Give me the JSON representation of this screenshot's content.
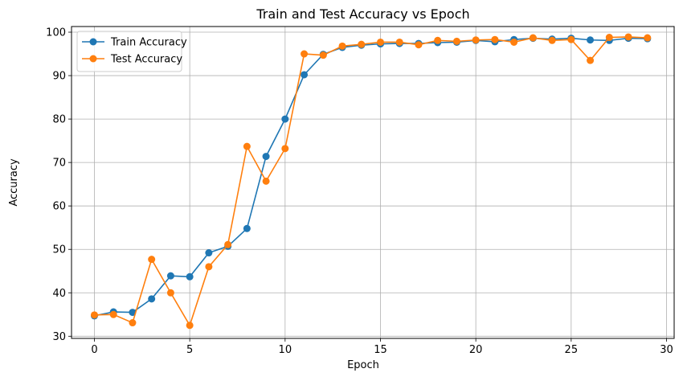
{
  "chart_data": {
    "type": "line",
    "title": "Train and Test Accuracy vs Epoch",
    "xlabel": "Epoch",
    "ylabel": "Accuracy",
    "xlim": [
      -1.2,
      30.4
    ],
    "ylim": [
      29.5,
      101.3
    ],
    "xticks": [
      0,
      5,
      10,
      15,
      20,
      25,
      30
    ],
    "yticks": [
      30,
      40,
      50,
      60,
      70,
      80,
      90,
      100
    ],
    "grid": true,
    "legend_position": "upper left",
    "x": [
      0,
      1,
      2,
      3,
      4,
      5,
      6,
      7,
      8,
      9,
      10,
      11,
      12,
      13,
      14,
      15,
      16,
      17,
      18,
      19,
      20,
      21,
      22,
      23,
      24,
      25,
      26,
      27,
      28,
      29
    ],
    "series": [
      {
        "name": "Train Accuracy",
        "color": "#1f77b4",
        "marker": "circle",
        "values": [
          34.7,
          35.6,
          35.5,
          38.6,
          43.9,
          43.7,
          49.2,
          50.7,
          54.8,
          71.4,
          80.0,
          90.2,
          94.9,
          96.5,
          97.0,
          97.3,
          97.4,
          97.4,
          97.6,
          97.7,
          98.1,
          97.8,
          98.3,
          98.6,
          98.4,
          98.6,
          98.2,
          98.1,
          98.6,
          98.5
        ]
      },
      {
        "name": "Test Accuracy",
        "color": "#ff7f0e",
        "marker": "circle",
        "values": [
          34.9,
          35.0,
          33.1,
          47.7,
          40.0,
          32.5,
          46.0,
          51.1,
          73.7,
          65.7,
          73.2,
          95.0,
          94.7,
          96.8,
          97.2,
          97.7,
          97.7,
          97.1,
          98.1,
          97.9,
          98.2,
          98.3,
          97.7,
          98.7,
          98.1,
          98.3,
          93.5,
          98.8,
          98.9,
          98.7
        ]
      }
    ]
  }
}
